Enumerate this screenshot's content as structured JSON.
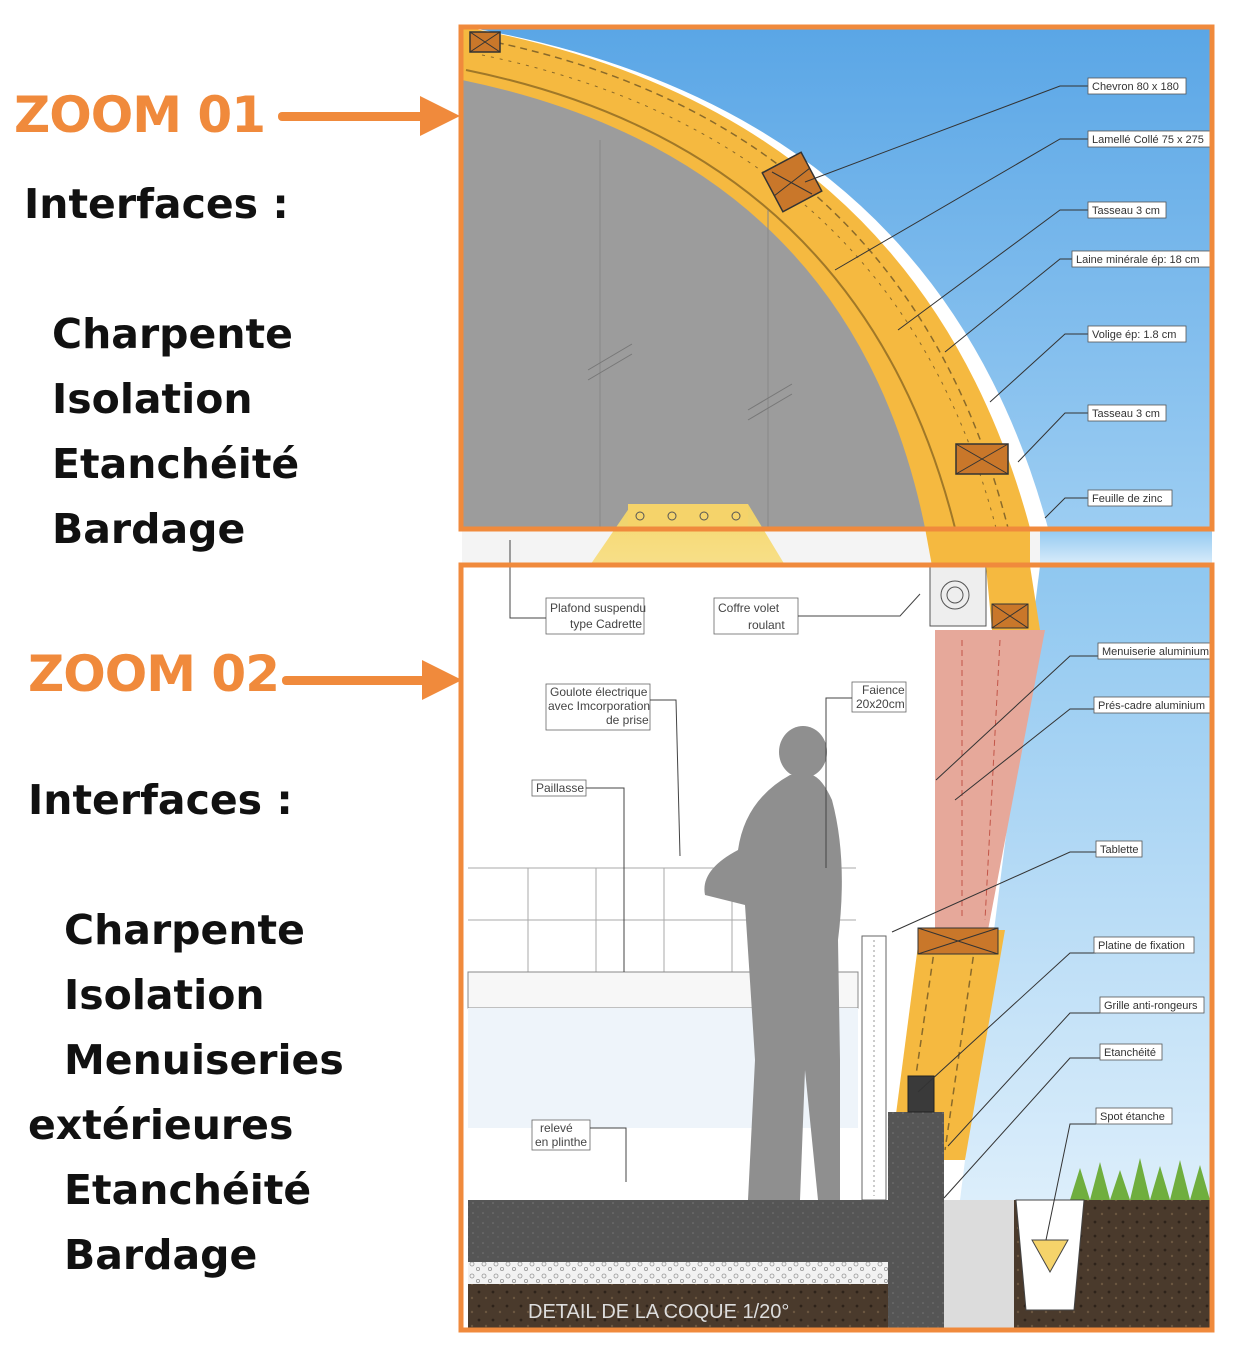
{
  "colors": {
    "accent": "#f08a3c",
    "sky": "#6ab2e8",
    "insulation": "#f5b940",
    "concrete": "#555555",
    "window": "#e6a89a"
  },
  "zoom01": {
    "title": "ZOOM 01",
    "interfaces_label": "Interfaces :",
    "items": [
      "Charpente",
      "Isolation",
      "Etanchéité",
      "Bardage"
    ]
  },
  "zoom02": {
    "title": "ZOOM 02",
    "interfaces_label": "Interfaces :",
    "items": [
      "Charpente",
      "Isolation",
      "Menuiseries",
      "extérieures",
      "Etanchéité",
      "Bardage"
    ]
  },
  "drawing": {
    "callouts_top": [
      "Chevron 80 x 180",
      "Lamellé Collé 75 x 275",
      "Tasseau 3 cm",
      "Laine minérale ép: 18 cm",
      "Volige ép: 1.8 cm",
      "Tasseau 3 cm",
      "Feuille de zinc"
    ],
    "callouts_bottom": [
      "Menuiserie aluminium",
      "Prés-cadre aluminium",
      "Tablette",
      "Platine de fixation",
      "Grille anti-rongeurs",
      "Etanchéité",
      "Spot étanche"
    ],
    "interior_labels": {
      "plafond_1": "Plafond suspendu",
      "plafond_2": "type Cadrette",
      "coffre_1": "Coffre volet",
      "coffre_2": "roulant",
      "goulotte_1": "Goulote électrique",
      "goulotte_2": "avec Imcorporation",
      "goulotte_3": "de prise",
      "faience_1": "Faience",
      "faience_2": "20x20cm",
      "paillasse": "Paillasse",
      "releve_1": "relevé",
      "releve_2": "en plinthe"
    },
    "caption": "DETAIL DE LA COQUE 1/20°"
  }
}
